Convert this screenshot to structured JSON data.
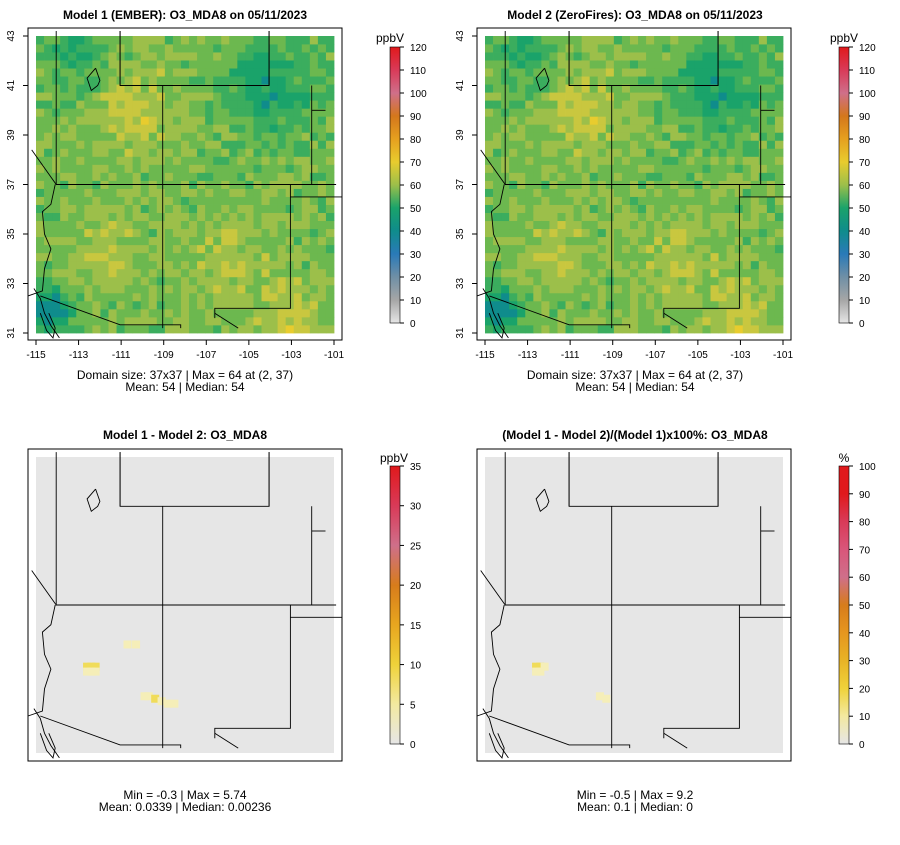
{
  "panels": [
    {
      "id": "m1",
      "title": "Model 1 (EMBER): O3_MDA8 on 05/11/2023",
      "show_axes": true,
      "lon_ticks": [
        "-115",
        "-113",
        "-111",
        "-109",
        "-107",
        "-105",
        "-103",
        "-101"
      ],
      "lat_ticks": [
        "31",
        "33",
        "35",
        "37",
        "39",
        "41",
        "43"
      ],
      "stats_line1": "Domain size: 37x37 | Max = 64 at (2, 37)",
      "stats_line2": "Mean: 54 |  Median: 54",
      "legend_unit": "ppbV",
      "legend_ticks": [
        "0",
        "10",
        "20",
        "30",
        "40",
        "50",
        "60",
        "70",
        "80",
        "90",
        "100",
        "110",
        "120"
      ],
      "legend_colors": [
        "#e6e6e6",
        "#a6a6a6",
        "#6f8fa6",
        "#2a7ab8",
        "#0f8c8c",
        "#1aa36a",
        "#9cbf4a",
        "#e8cc2e",
        "#e6a01f",
        "#d4771c",
        "#cf6f8a",
        "#d93a58",
        "#e0191c"
      ]
    },
    {
      "id": "m2",
      "title": "Model 2 (ZeroFires): O3_MDA8 on 05/11/2023",
      "show_axes": true,
      "lon_ticks": [
        "-115",
        "-113",
        "-111",
        "-109",
        "-107",
        "-105",
        "-103",
        "-101"
      ],
      "lat_ticks": [
        "31",
        "33",
        "35",
        "37",
        "39",
        "41",
        "43"
      ],
      "stats_line1": "Domain size: 37x37 | Max = 64 at (2, 37)",
      "stats_line2": "Mean: 54 |  Median: 54",
      "legend_unit": "ppbV",
      "legend_ticks": [
        "0",
        "10",
        "20",
        "30",
        "40",
        "50",
        "60",
        "70",
        "80",
        "90",
        "100",
        "110",
        "120"
      ],
      "legend_colors": [
        "#e6e6e6",
        "#a6a6a6",
        "#6f8fa6",
        "#2a7ab8",
        "#0f8c8c",
        "#1aa36a",
        "#9cbf4a",
        "#e8cc2e",
        "#e6a01f",
        "#d4771c",
        "#cf6f8a",
        "#d93a58",
        "#e0191c"
      ]
    },
    {
      "id": "diff",
      "title": "Model 1 - Model 2: O3_MDA8",
      "show_axes": false,
      "stats_line1": "Min = -0.3 | Max = 5.74",
      "stats_line2": "Mean: 0.0339 |  Median: 0.00236",
      "legend_unit": "ppbV",
      "legend_ticks": [
        "0",
        "5",
        "10",
        "15",
        "20",
        "25",
        "30",
        "35"
      ],
      "legend_colors": [
        "#e6e6e6",
        "#f3e9a0",
        "#efd23a",
        "#e8a61f",
        "#d77c1b",
        "#cf6f8a",
        "#d93a58",
        "#e0191c"
      ]
    },
    {
      "id": "pct",
      "title": "(Model 1 - Model 2)/(Model 1)x100%: O3_MDA8",
      "show_axes": false,
      "stats_line1": "Min = -0.5 | Max = 9.2",
      "stats_line2": "Mean: 0.1 |  Median: 0",
      "legend_unit": "%",
      "legend_ticks": [
        "0",
        "10",
        "20",
        "30",
        "40",
        "50",
        "60",
        "70",
        "80",
        "90",
        "100"
      ],
      "legend_colors": [
        "#e6e6e6",
        "#f3e9a0",
        "#efd23a",
        "#e8b326",
        "#e6961f",
        "#d77c1b",
        "#cf6f8a",
        "#d9567a",
        "#d93a58",
        "#e0191c",
        "#e0191c"
      ]
    }
  ],
  "map_colors": {
    "background_diff": "#e6e6e6",
    "hot_diff": "#f0dc5a",
    "light_diff": "#f5eeb8",
    "o3_colors": [
      "#0f8c8c",
      "#1aa36a",
      "#3bad5e",
      "#6cb84f",
      "#9cbf4a",
      "#c9c73f",
      "#e8cc2e"
    ]
  }
}
